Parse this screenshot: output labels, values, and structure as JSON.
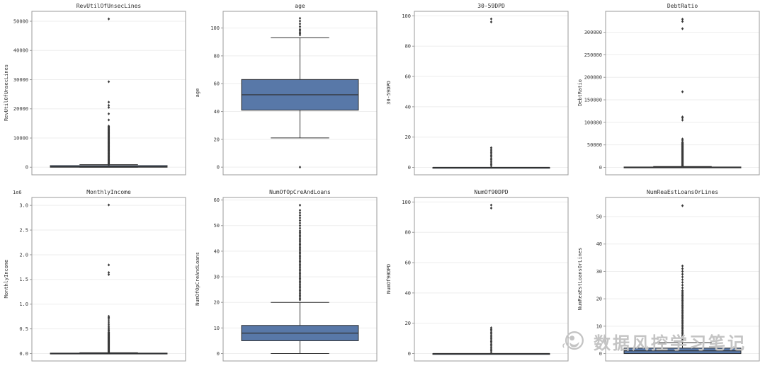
{
  "watermark": {
    "text": "数据风控学习笔记"
  },
  "colors": {
    "box_fill": "#5878a8",
    "box_edge": "#2f2f2f",
    "spine": "#9b9b9b",
    "grid": "#eeeeee",
    "text": "#3a3a3a",
    "flier": "#3a3a3a"
  },
  "chart_data": [
    {
      "type": "box",
      "title": "RevUtilOfUnsecLines",
      "ylabel": "RevUtilOfUnsecLines",
      "ylim": [
        -2600,
        53400
      ],
      "tick_values": [
        0,
        10000,
        20000,
        30000,
        40000,
        50000
      ],
      "tick_labels": [
        "0",
        "10000",
        "20000",
        "30000",
        "40000",
        "50000"
      ],
      "box": {
        "q1": 0,
        "median": 160,
        "q3": 560,
        "whisker_low": 0,
        "whisker_high": 900
      },
      "outlier_runs": [
        {
          "from": 900,
          "to": 14200,
          "step": 200
        }
      ],
      "outliers": [
        16200,
        18300,
        20500,
        21200,
        22300,
        29300,
        50800
      ]
    },
    {
      "type": "box",
      "title": "age",
      "ylabel": "age",
      "ylim": [
        -5.5,
        112
      ],
      "tick_values": [
        0,
        20,
        40,
        60,
        80,
        100
      ],
      "tick_labels": [
        "0",
        "20",
        "40",
        "60",
        "80",
        "100"
      ],
      "box": {
        "q1": 41,
        "median": 52,
        "q3": 63,
        "whisker_low": 21,
        "whisker_high": 93
      },
      "outlier_runs": [],
      "outliers": [
        0,
        95,
        96,
        97,
        98,
        99,
        101,
        103,
        105,
        107
      ]
    },
    {
      "type": "box",
      "title": "30-59DPD",
      "ylabel": "30-59DPD",
      "ylim": [
        -4.9,
        103
      ],
      "tick_values": [
        0,
        20,
        40,
        60,
        80,
        100
      ],
      "tick_labels": [
        "0",
        "20",
        "40",
        "60",
        "80",
        "100"
      ],
      "box": {
        "q1": 0,
        "median": 0,
        "q3": 0,
        "whisker_low": 0,
        "whisker_high": 0
      },
      "outlier_runs": [
        {
          "from": 1,
          "to": 13,
          "step": 1
        }
      ],
      "outliers": [
        96,
        98
      ]
    },
    {
      "type": "box",
      "title": "DebtRatio",
      "ylabel": "DebtRatio",
      "ylim": [
        -16500,
        346500
      ],
      "tick_values": [
        0,
        50000,
        100000,
        150000,
        200000,
        250000,
        300000
      ],
      "tick_labels": [
        "0",
        "50000",
        "100000",
        "150000",
        "200000",
        "250000",
        "300000"
      ],
      "box": {
        "q1": 0,
        "median": 400,
        "q3": 900,
        "whisker_low": 0,
        "whisker_high": 2000
      },
      "outlier_runs": [
        {
          "from": 2500,
          "to": 57000,
          "step": 700
        }
      ],
      "outliers": [
        60500,
        63000,
        105000,
        110000,
        112000,
        168000,
        308000,
        324000,
        329000
      ]
    },
    {
      "type": "box",
      "title": "MonthlyIncome",
      "ylabel": "MonthlyIncome",
      "offset_label": "1e6",
      "ylim": [
        -150000,
        3160000
      ],
      "tick_values": [
        0,
        500000,
        1000000,
        1500000,
        2000000,
        2500000,
        3000000
      ],
      "tick_labels": [
        "0.0",
        "0.5",
        "1.0",
        "1.5",
        "2.0",
        "2.5",
        "3.0"
      ],
      "box": {
        "q1": 0,
        "median": 5000,
        "q3": 9000,
        "whisker_low": 0,
        "whisker_high": 16000
      },
      "outlier_runs": [
        {
          "from": 30000,
          "to": 440000,
          "step": 7000
        }
      ],
      "outliers": [
        460000,
        480000,
        510000,
        540000,
        580000,
        620000,
        660000,
        700000,
        730000,
        755000,
        1600000,
        1640000,
        1794000,
        3009000
      ]
    },
    {
      "type": "box",
      "title": "NumOfOpCreAndLoans",
      "ylabel": "NumOfOpCreAndLoans",
      "ylim": [
        -2.9,
        61
      ],
      "tick_values": [
        0,
        10,
        20,
        30,
        40,
        50,
        60
      ],
      "tick_labels": [
        "0",
        "10",
        "20",
        "30",
        "40",
        "50",
        "60"
      ],
      "box": {
        "q1": 5,
        "median": 8,
        "q3": 11,
        "whisker_low": 0,
        "whisker_high": 20
      },
      "outlier_runs": [
        {
          "from": 21,
          "to": 48,
          "step": 0.6
        }
      ],
      "outliers": [
        49,
        50,
        51,
        52,
        53,
        54,
        55,
        56,
        58
      ]
    },
    {
      "type": "box",
      "title": "NumOf90DPD",
      "ylabel": "NumOf90DPD",
      "ylim": [
        -4.9,
        103
      ],
      "tick_values": [
        0,
        20,
        40,
        60,
        80,
        100
      ],
      "tick_labels": [
        "0",
        "20",
        "40",
        "60",
        "80",
        "100"
      ],
      "box": {
        "q1": 0,
        "median": 0,
        "q3": 0,
        "whisker_low": 0,
        "whisker_high": 0
      },
      "outlier_runs": [
        {
          "from": 1,
          "to": 17,
          "step": 1
        }
      ],
      "outliers": [
        96,
        98
      ]
    },
    {
      "type": "box",
      "title": "NumReaEstLoansOrLines",
      "ylabel": "NumReaEstLoansOrLines",
      "ylim": [
        -2.7,
        57
      ],
      "tick_values": [
        0,
        10,
        20,
        30,
        40,
        50
      ],
      "tick_labels": [
        "0",
        "10",
        "20",
        "30",
        "40",
        "50"
      ],
      "box": {
        "q1": 0,
        "median": 1,
        "q3": 2,
        "whisker_low": 0,
        "whisker_high": 4
      },
      "outlier_runs": [
        {
          "from": 5,
          "to": 23,
          "step": 0.45
        }
      ],
      "outliers": [
        24,
        25,
        26,
        27,
        28,
        29,
        30,
        31,
        32,
        54
      ]
    }
  ]
}
